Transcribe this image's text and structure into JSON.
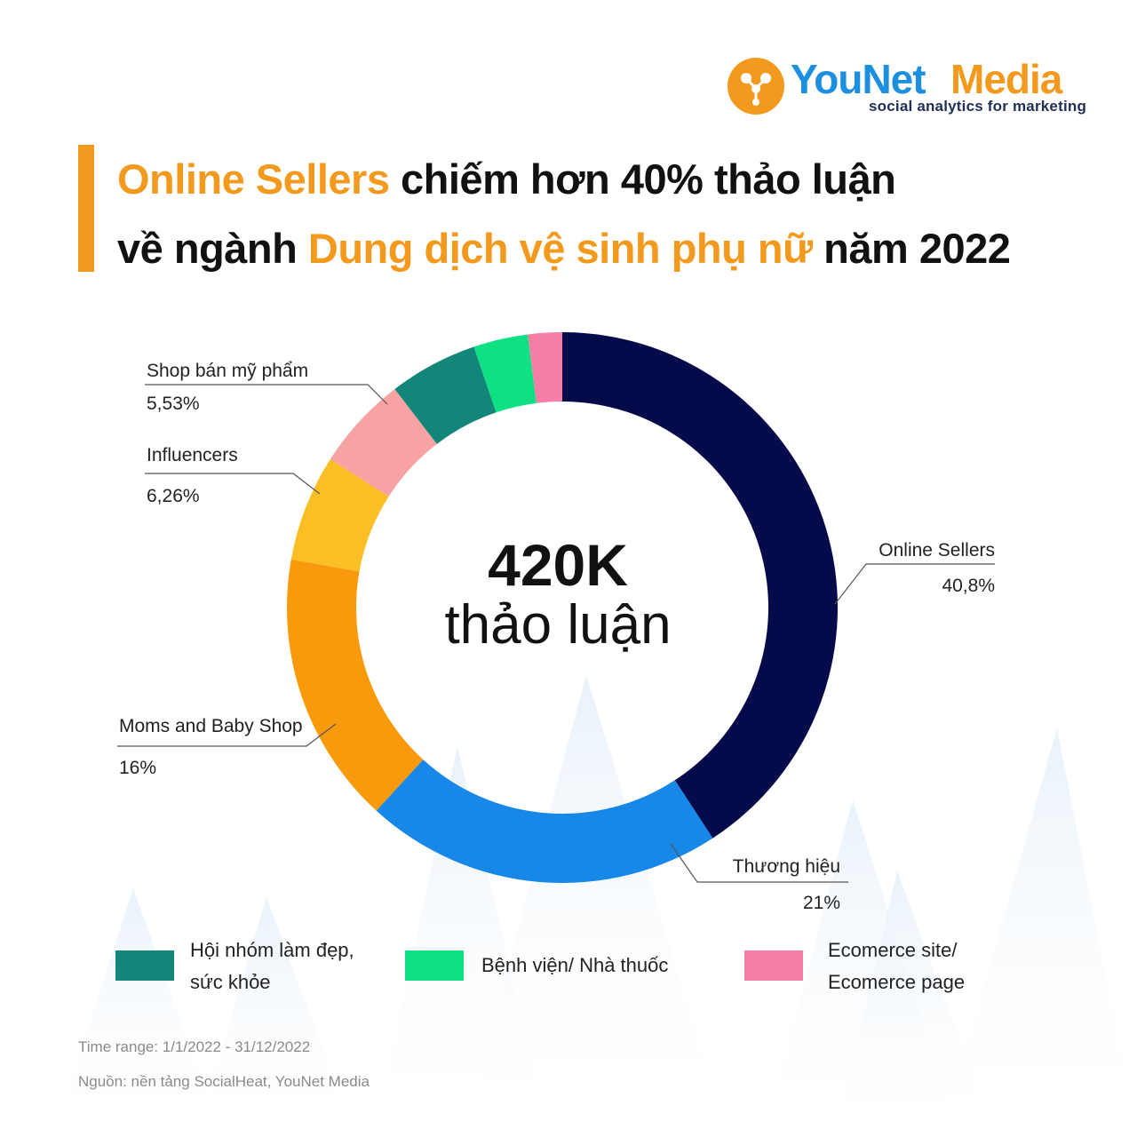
{
  "logo": {
    "brand_first": "YouNet",
    "brand_second": "Media",
    "tagline": "social analytics for marketing"
  },
  "title": {
    "line1_highlight": "Online Sellers",
    "line1_rest": " chiếm hơn 40% thảo luận",
    "line2_start": "về ngành ",
    "line2_highlight": "Dung dịch vệ sinh phụ nữ",
    "line2_end": " năm 2022"
  },
  "chart_data": {
    "type": "pie",
    "variant": "donut",
    "center_value": "420K",
    "center_label": "thảo luận",
    "slices": [
      {
        "label": "Online Sellers",
        "value_text": "40,8%",
        "value": 40.8,
        "color": "#050a4a"
      },
      {
        "label": "Thương hiệu",
        "value_text": "21%",
        "value": 21,
        "color": "#1787e8"
      },
      {
        "label": "Moms and Baby Shop",
        "value_text": "16%",
        "value": 16,
        "color": "#f99a0c"
      },
      {
        "label": "Influencers",
        "value_text": "6,26%",
        "value": 6.26,
        "color": "#fbbe25"
      },
      {
        "label": "Shop bán mỹ phẩm",
        "value_text": "5,53%",
        "value": 5.53,
        "color": "#f7a3a3"
      },
      {
        "label": "Hội nhóm làm đẹp, sức khỏe",
        "value": 5.21,
        "color": "#128779"
      },
      {
        "label": "Bệnh viện/ Nhà thuốc",
        "value": 3.2,
        "color": "#0fe084"
      },
      {
        "label": "Ecomerce site/ Ecomerce page",
        "value": 2.0,
        "color": "#f77fa5"
      }
    ]
  },
  "legend": [
    {
      "line1": "Hội nhóm làm đẹp,",
      "line2": "sức khỏe",
      "color": "#128779"
    },
    {
      "line1": "Bệnh viện/ Nhà thuốc",
      "line2": "",
      "color": "#0fe084"
    },
    {
      "line1": "Ecomerce site/",
      "line2": "Ecomerce page",
      "color": "#f77fa5"
    }
  ],
  "footer": {
    "time_range": "Time range: 1/1/2022 - 31/12/2022",
    "source": "Nguồn: nền tảng SocialHeat, YouNet Media"
  }
}
